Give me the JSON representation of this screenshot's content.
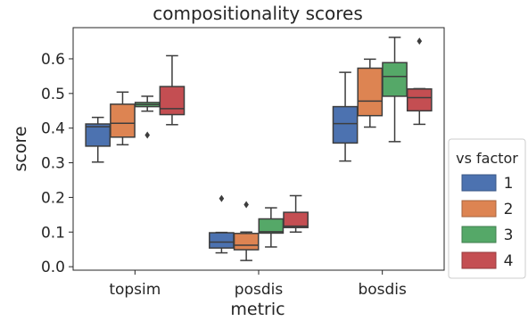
{
  "chart_data": {
    "type": "box",
    "title": "compositionality scores",
    "xlabel": "metric",
    "ylabel": "score",
    "categories": [
      "topsim",
      "posdis",
      "bosdis"
    ],
    "ylim": [
      -0.01,
      0.69
    ],
    "yticks": [
      "0.0",
      "0.1",
      "0.2",
      "0.3",
      "0.4",
      "0.5",
      "0.6"
    ],
    "legend": {
      "title": "vs factor",
      "position": "right"
    },
    "grid": false,
    "series": [
      {
        "name": "1",
        "color": "#4c72b0",
        "boxes": [
          {
            "whislo": 0.302,
            "q1": 0.348,
            "med": 0.404,
            "q3": 0.412,
            "whishi": 0.431,
            "fliers": []
          },
          {
            "whislo": 0.04,
            "q1": 0.054,
            "med": 0.071,
            "q3": 0.098,
            "whishi": 0.099,
            "fliers": [
              0.197
            ]
          },
          {
            "whislo": 0.305,
            "q1": 0.357,
            "med": 0.413,
            "q3": 0.462,
            "whishi": 0.561,
            "fliers": []
          }
        ]
      },
      {
        "name": "2",
        "color": "#dd8452",
        "boxes": [
          {
            "whislo": 0.352,
            "q1": 0.374,
            "med": 0.414,
            "q3": 0.469,
            "whishi": 0.504,
            "fliers": []
          },
          {
            "whislo": 0.018,
            "q1": 0.049,
            "med": 0.062,
            "q3": 0.096,
            "whishi": 0.1,
            "fliers": [
              0.179
            ]
          },
          {
            "whislo": 0.403,
            "q1": 0.436,
            "med": 0.478,
            "q3": 0.573,
            "whishi": 0.599,
            "fliers": []
          }
        ]
      },
      {
        "name": "3",
        "color": "#55a868",
        "boxes": [
          {
            "whislo": 0.449,
            "q1": 0.462,
            "med": 0.468,
            "q3": 0.474,
            "whishi": 0.492,
            "fliers": [
              0.38
            ]
          },
          {
            "whislo": 0.057,
            "q1": 0.097,
            "med": 0.101,
            "q3": 0.138,
            "whishi": 0.17,
            "fliers": []
          },
          {
            "whislo": 0.361,
            "q1": 0.492,
            "med": 0.549,
            "q3": 0.589,
            "whishi": 0.662,
            "fliers": []
          }
        ]
      },
      {
        "name": "4",
        "color": "#c44e52",
        "boxes": [
          {
            "whislo": 0.41,
            "q1": 0.439,
            "med": 0.456,
            "q3": 0.52,
            "whishi": 0.609,
            "fliers": []
          },
          {
            "whislo": 0.1,
            "q1": 0.113,
            "med": 0.117,
            "q3": 0.157,
            "whishi": 0.205,
            "fliers": []
          },
          {
            "whislo": 0.411,
            "q1": 0.45,
            "med": 0.488,
            "q3": 0.513,
            "whishi": 0.514,
            "fliers": [
              0.651
            ]
          }
        ]
      }
    ]
  }
}
